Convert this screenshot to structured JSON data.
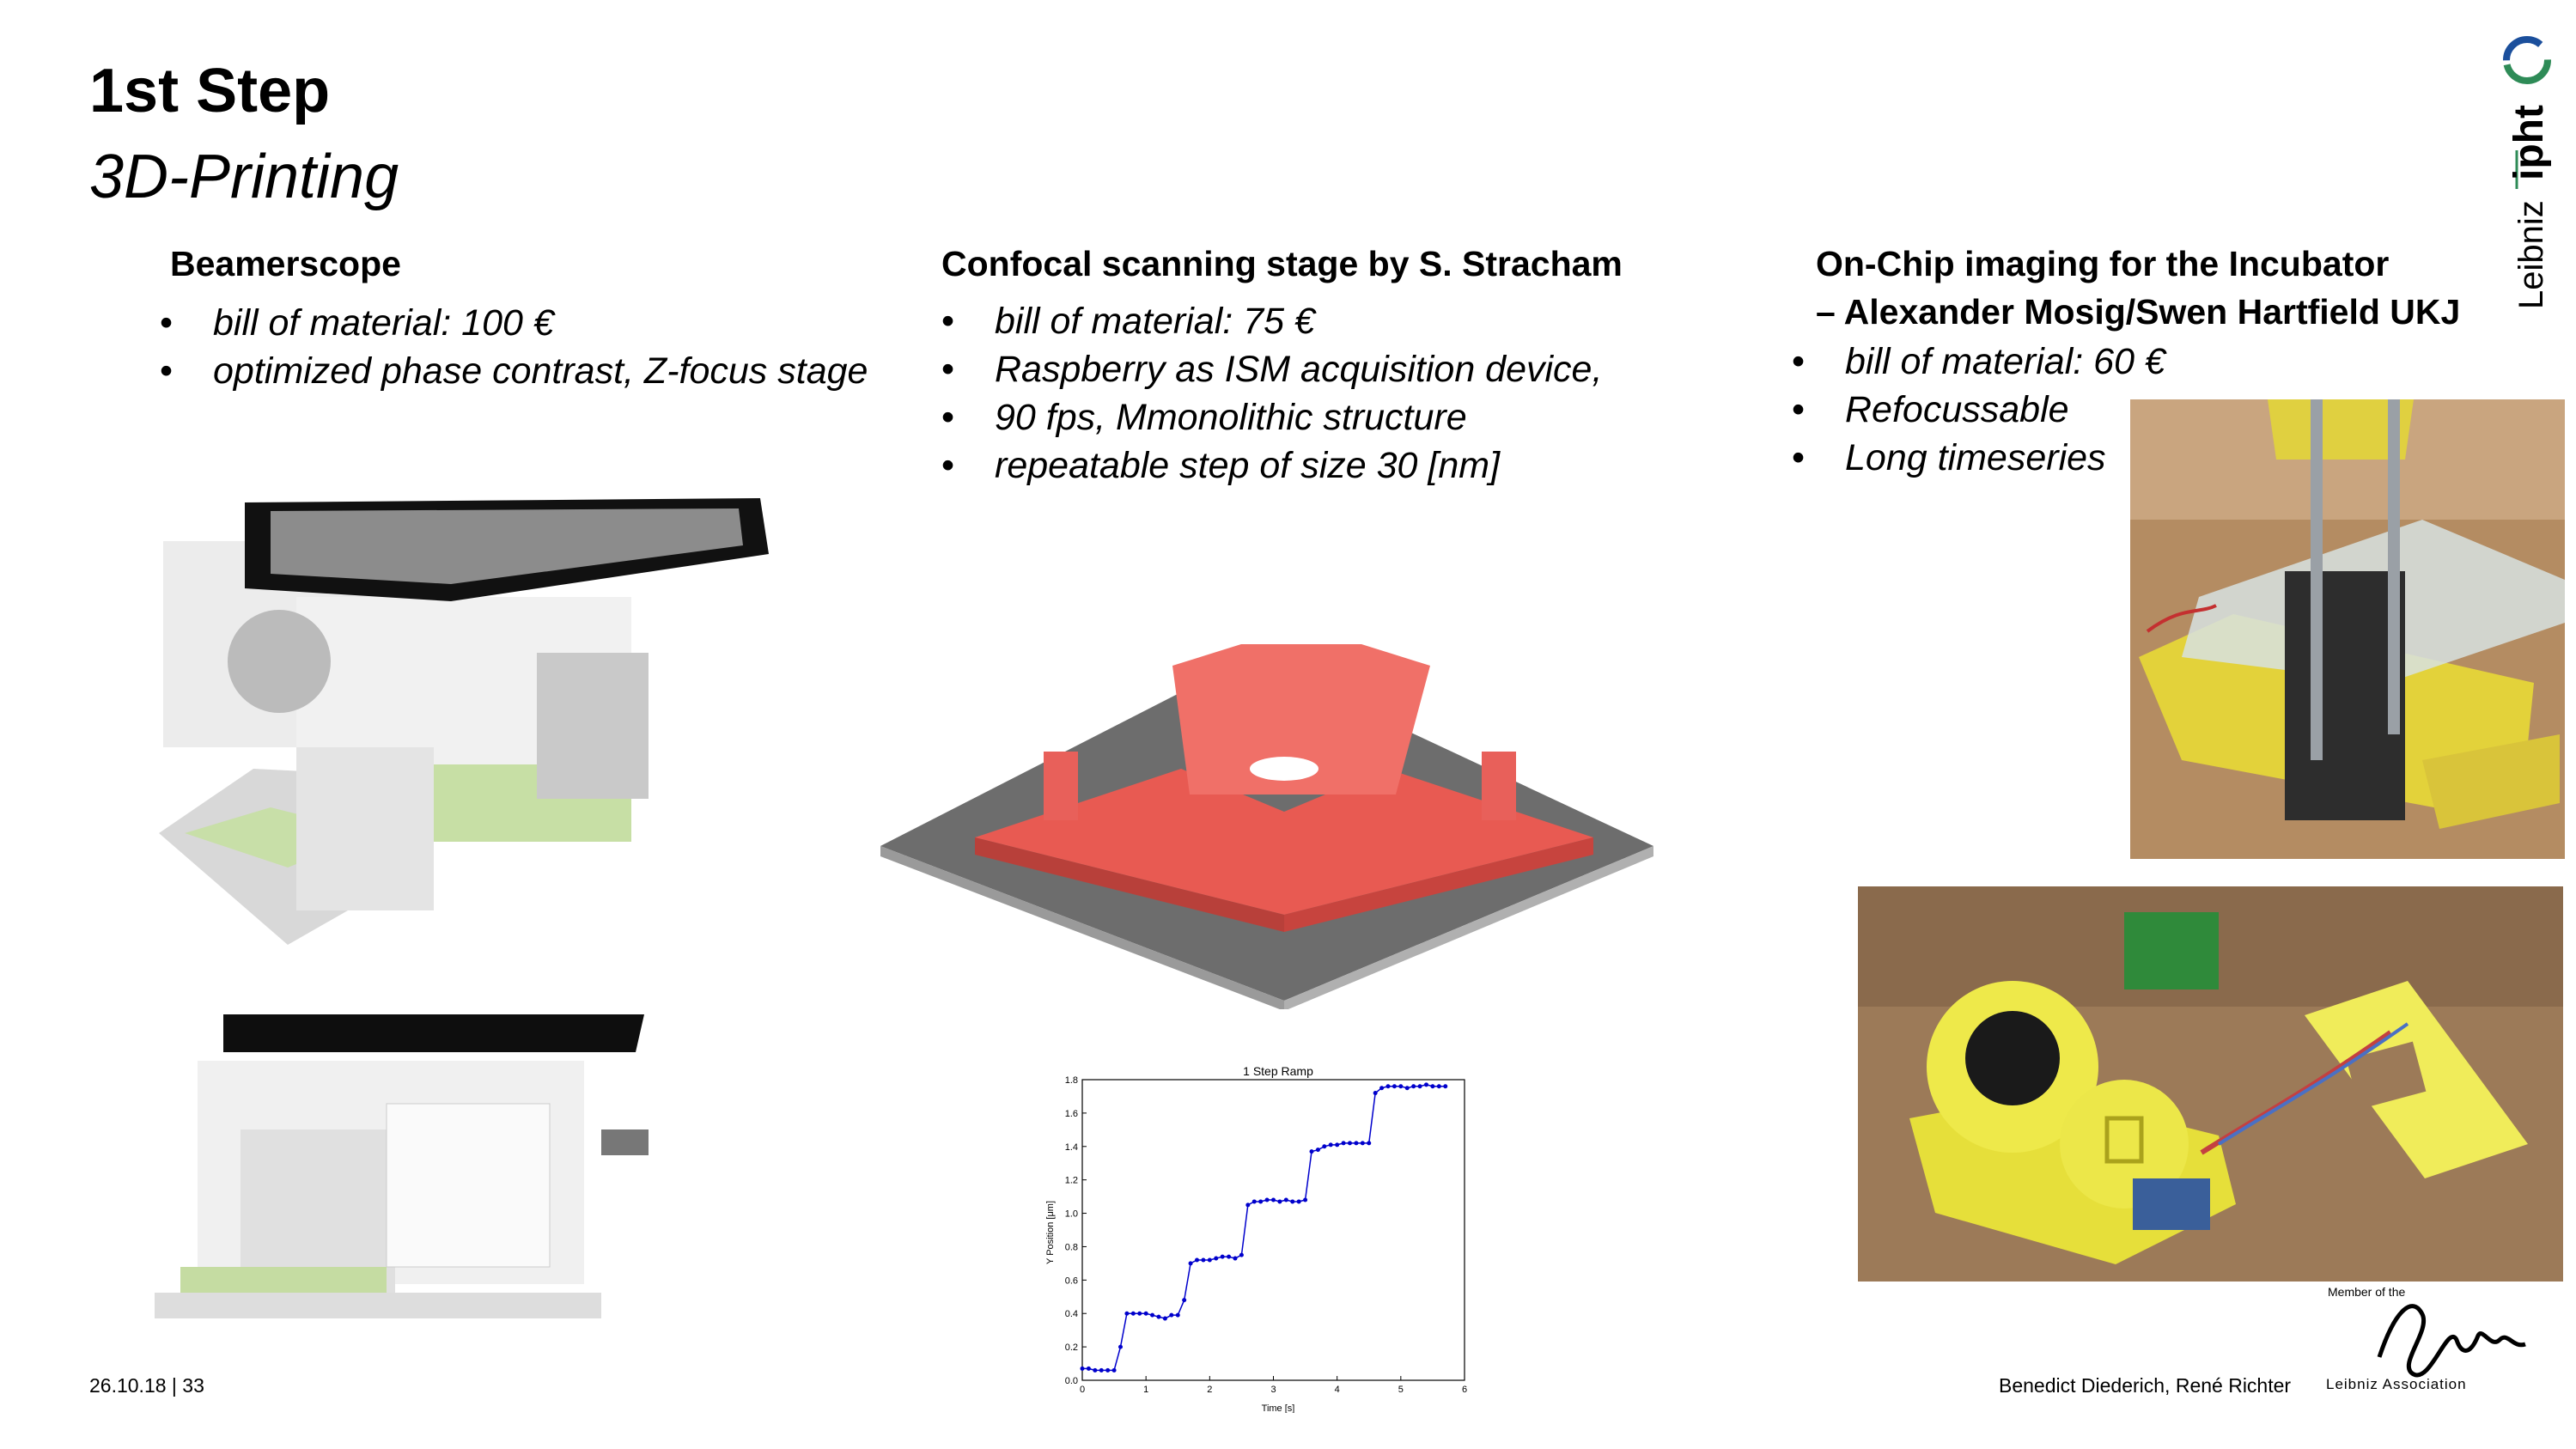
{
  "slide": {
    "title": "1st Step",
    "subtitle": "3D-Printing"
  },
  "columns": [
    {
      "heading": "Beamerscope",
      "bullets": [
        "bill of material: 100 €",
        "optimized phase contrast, Z-focus stage"
      ]
    },
    {
      "heading": "Confocal scanning stage by S. Stracham",
      "bullets": [
        "bill of material: 75 €",
        "Raspberry as ISM acquisition device,",
        "90 fps, Mmonolithic structure",
        "repeatable step of size 30 [nm]"
      ]
    },
    {
      "heading_line1": "On-Chip imaging for the Incubator",
      "heading_line2": "– Alexander Mosig/Swen Hartfield UKJ",
      "bullets": [
        "bill of material: 60 €",
        "Refocussable",
        "Long timeseries"
      ]
    }
  ],
  "logo": {
    "text_leibniz": "Leibniz",
    "text_ipht": "ipht"
  },
  "leibniz_badge": {
    "member_text": "Member of the",
    "association_text": "Leibniz Association"
  },
  "footer": {
    "date_page": "26.10.18 | 33",
    "authors": "Benedict Diederich, René Richter"
  },
  "chart_data": {
    "type": "line",
    "title": "1 Step Ramp",
    "xlabel": "Time [s]",
    "ylabel": "Y Position [μm]",
    "xlim": [
      0,
      6
    ],
    "ylim": [
      0,
      1.8
    ],
    "xticks": [
      0,
      1,
      2,
      3,
      4,
      5,
      6
    ],
    "yticks": [
      0.0,
      0.2,
      0.4,
      0.6,
      0.8,
      1.0,
      1.2,
      1.4,
      1.6,
      1.8
    ],
    "series": [
      {
        "color": "#0000cc",
        "x": [
          0.0,
          0.1,
          0.2,
          0.3,
          0.4,
          0.5,
          0.6,
          0.7,
          0.8,
          0.9,
          1.0,
          1.1,
          1.2,
          1.3,
          1.4,
          1.5,
          1.6,
          1.7,
          1.8,
          1.9,
          2.0,
          2.1,
          2.2,
          2.3,
          2.4,
          2.5,
          2.6,
          2.7,
          2.8,
          2.9,
          3.0,
          3.1,
          3.2,
          3.3,
          3.4,
          3.5,
          3.6,
          3.7,
          3.8,
          3.9,
          4.0,
          4.1,
          4.2,
          4.3,
          4.4,
          4.5,
          4.6,
          4.7,
          4.8,
          4.9,
          5.0,
          5.1,
          5.2,
          5.3,
          5.4,
          5.5,
          5.6,
          5.7
        ],
        "y": [
          0.07,
          0.07,
          0.06,
          0.06,
          0.06,
          0.06,
          0.2,
          0.4,
          0.4,
          0.4,
          0.4,
          0.39,
          0.38,
          0.37,
          0.39,
          0.39,
          0.48,
          0.7,
          0.72,
          0.72,
          0.72,
          0.73,
          0.74,
          0.74,
          0.73,
          0.75,
          1.05,
          1.07,
          1.07,
          1.08,
          1.08,
          1.07,
          1.08,
          1.07,
          1.07,
          1.08,
          1.37,
          1.38,
          1.4,
          1.41,
          1.41,
          1.42,
          1.42,
          1.42,
          1.42,
          1.42,
          1.72,
          1.75,
          1.76,
          1.76,
          1.76,
          1.75,
          1.76,
          1.76,
          1.77,
          1.76,
          1.76,
          1.76
        ]
      }
    ]
  }
}
